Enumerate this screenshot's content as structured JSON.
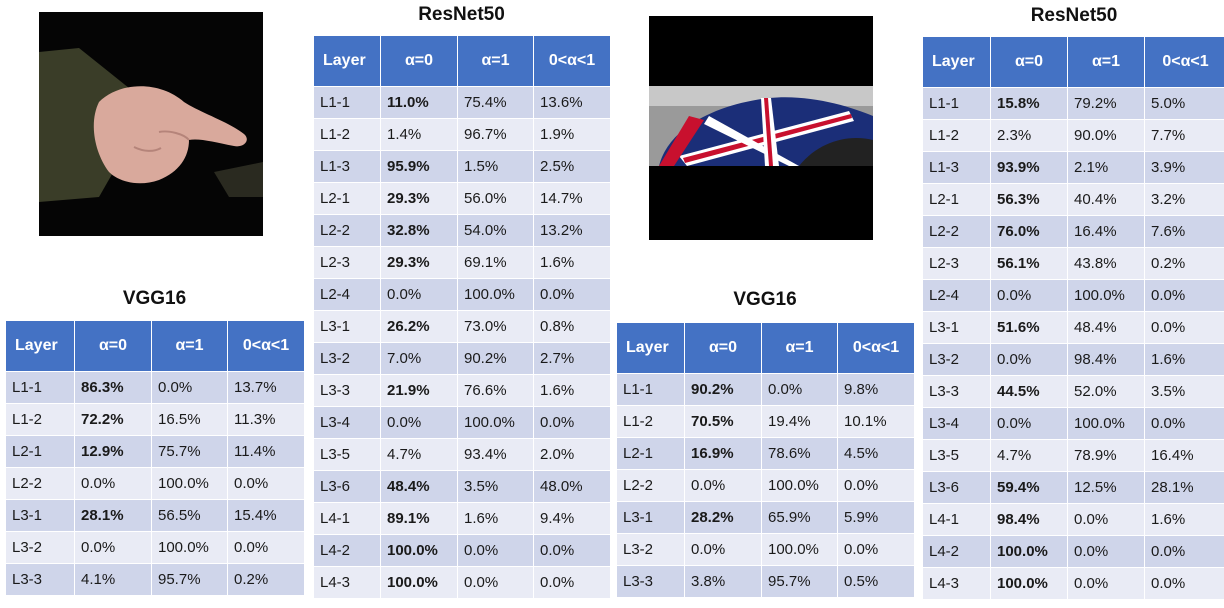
{
  "panels": [
    {
      "resnet_title": "ResNet50",
      "vgg_title": "VGG16",
      "headers": [
        "Layer",
        "α=0",
        "α=1",
        "0<α<1"
      ],
      "resnet_rows": [
        [
          "L1-1",
          "11.0%",
          "75.4%",
          "13.6%"
        ],
        [
          "L1-2",
          "1.4%",
          "96.7%",
          "1.9%"
        ],
        [
          "L1-3",
          "95.9%",
          "1.5%",
          "2.5%"
        ],
        [
          "L2-1",
          "29.3%",
          "56.0%",
          "14.7%"
        ],
        [
          "L2-2",
          "32.8%",
          "54.0%",
          "13.2%"
        ],
        [
          "L2-3",
          "29.3%",
          "69.1%",
          "1.6%"
        ],
        [
          "L2-4",
          "0.0%",
          "100.0%",
          "0.0%"
        ],
        [
          "L3-1",
          "26.2%",
          "73.0%",
          "0.8%"
        ],
        [
          "L3-2",
          "7.0%",
          "90.2%",
          "2.7%"
        ],
        [
          "L3-3",
          "21.9%",
          "76.6%",
          "1.6%"
        ],
        [
          "L3-4",
          "0.0%",
          "100.0%",
          "0.0%"
        ],
        [
          "L3-5",
          "4.7%",
          "93.4%",
          "2.0%"
        ],
        [
          "L3-6",
          "48.4%",
          "3.5%",
          "48.0%"
        ],
        [
          "L4-1",
          "89.1%",
          "1.6%",
          "9.4%"
        ],
        [
          "L4-2",
          "100.0%",
          "0.0%",
          "0.0%"
        ],
        [
          "L4-3",
          "100.0%",
          "0.0%",
          "0.0%"
        ]
      ],
      "resnet_bold": [
        true,
        false,
        true,
        true,
        true,
        true,
        false,
        true,
        false,
        true,
        false,
        false,
        true,
        true,
        true,
        true
      ],
      "vgg_rows": [
        [
          "L1-1",
          "86.3%",
          "0.0%",
          "13.7%"
        ],
        [
          "L1-2",
          "72.2%",
          "16.5%",
          "11.3%"
        ],
        [
          "L2-1",
          "12.9%",
          "75.7%",
          "11.4%"
        ],
        [
          "L2-2",
          "0.0%",
          "100.0%",
          "0.0%"
        ],
        [
          "L3-1",
          "28.1%",
          "56.5%",
          "15.4%"
        ],
        [
          "L3-2",
          "0.0%",
          "100.0%",
          "0.0%"
        ],
        [
          "L3-3",
          "4.1%",
          "95.7%",
          "0.2%"
        ]
      ],
      "vgg_bold": [
        true,
        true,
        true,
        false,
        true,
        false,
        false
      ]
    },
    {
      "resnet_title": "ResNet50",
      "vgg_title": "VGG16",
      "headers": [
        "Layer",
        "α=0",
        "α=1",
        "0<α<1"
      ],
      "resnet_rows": [
        [
          "L1-1",
          "15.8%",
          "79.2%",
          "5.0%"
        ],
        [
          "L1-2",
          "2.3%",
          "90.0%",
          "7.7%"
        ],
        [
          "L1-3",
          "93.9%",
          "2.1%",
          "3.9%"
        ],
        [
          "L2-1",
          "56.3%",
          "40.4%",
          "3.2%"
        ],
        [
          "L2-2",
          "76.0%",
          "16.4%",
          "7.6%"
        ],
        [
          "L2-3",
          "56.1%",
          "43.8%",
          "0.2%"
        ],
        [
          "L2-4",
          "0.0%",
          "100.0%",
          "0.0%"
        ],
        [
          "L3-1",
          "51.6%",
          "48.4%",
          "0.0%"
        ],
        [
          "L3-2",
          "0.0%",
          "98.4%",
          "1.6%"
        ],
        [
          "L3-3",
          "44.5%",
          "52.0%",
          "3.5%"
        ],
        [
          "L3-4",
          "0.0%",
          "100.0%",
          "0.0%"
        ],
        [
          "L3-5",
          "4.7%",
          "78.9%",
          "16.4%"
        ],
        [
          "L3-6",
          "59.4%",
          "12.5%",
          "28.1%"
        ],
        [
          "L4-1",
          "98.4%",
          "0.0%",
          "1.6%"
        ],
        [
          "L4-2",
          "100.0%",
          "0.0%",
          "0.0%"
        ],
        [
          "L4-3",
          "100.0%",
          "0.0%",
          "0.0%"
        ]
      ],
      "resnet_bold": [
        true,
        false,
        true,
        true,
        true,
        true,
        false,
        true,
        false,
        true,
        false,
        false,
        true,
        true,
        true,
        true
      ],
      "vgg_rows": [
        [
          "L1-1",
          "90.2%",
          "0.0%",
          "9.8%"
        ],
        [
          "L1-2",
          "70.5%",
          "19.4%",
          "10.1%"
        ],
        [
          "L2-1",
          "16.9%",
          "78.6%",
          "4.5%"
        ],
        [
          "L2-2",
          "0.0%",
          "100.0%",
          "0.0%"
        ],
        [
          "L3-1",
          "28.2%",
          "65.9%",
          "5.9%"
        ],
        [
          "L3-2",
          "0.0%",
          "100.0%",
          "0.0%"
        ],
        [
          "L3-3",
          "3.8%",
          "95.7%",
          "0.5%"
        ]
      ],
      "vgg_bold": [
        true,
        true,
        true,
        false,
        true,
        false,
        false
      ]
    }
  ]
}
